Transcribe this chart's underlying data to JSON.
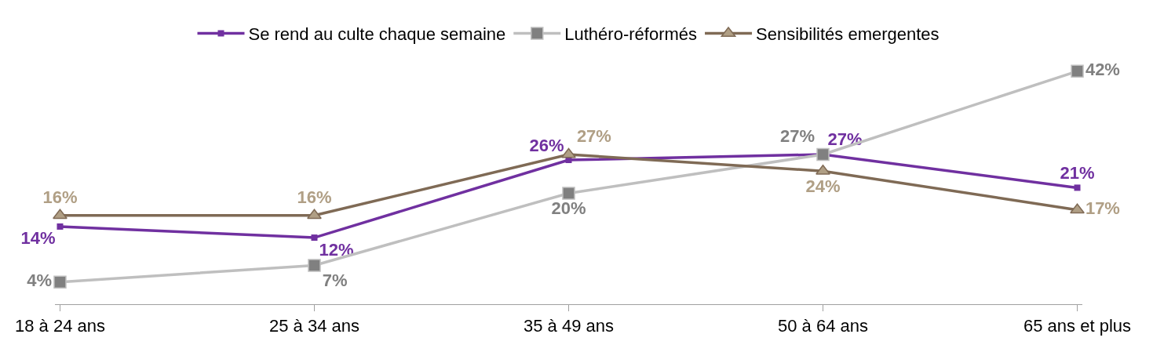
{
  "chart_data": {
    "type": "line",
    "categories": [
      "18 à 24 ans",
      "25 à 34 ans",
      "35 à 49 ans",
      "50 à 64 ans",
      "65 ans et plus"
    ],
    "series": [
      {
        "name": "Se rend au culte chaque semaine",
        "color": "#7030a0",
        "marker": "square",
        "values": [
          14,
          12,
          26,
          27,
          21
        ],
        "value_labels": [
          "14%",
          "12%",
          "26%",
          "27%",
          "21%"
        ]
      },
      {
        "name": "Luthéro-réformés",
        "color": "#bfbfbf",
        "marker": "square",
        "values": [
          4,
          7,
          20,
          27,
          42
        ],
        "value_labels": [
          "4%",
          "7%",
          "20%",
          "27%",
          "42%"
        ]
      },
      {
        "name": "Sensibilités emergentes",
        "color": "#7f6a55",
        "marker": "triangle",
        "values": [
          16,
          16,
          27,
          24,
          17
        ],
        "value_labels": [
          "16%",
          "16%",
          "27%",
          "24%",
          "17%"
        ]
      }
    ],
    "legend": "top",
    "tick_labels": "x"
  }
}
